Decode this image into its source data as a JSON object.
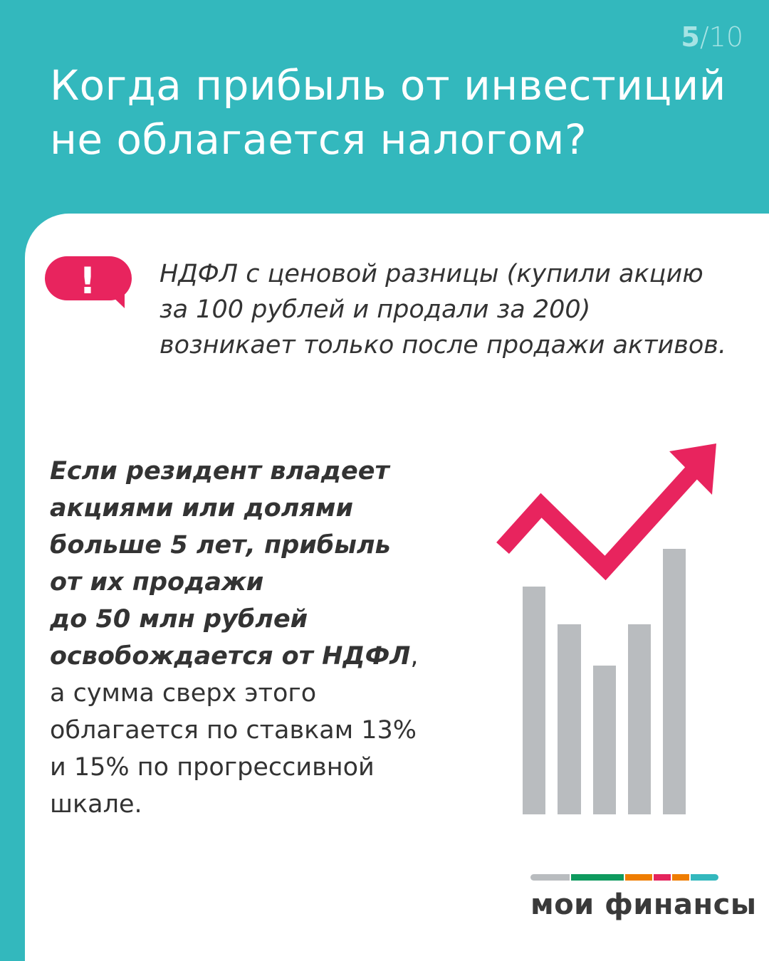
{
  "page_indicator": {
    "current": "5",
    "separator_total": "/10"
  },
  "title_lines": [
    "Когда прибыль от инвестиций",
    "не облагается налогом?"
  ],
  "alert": {
    "icon": "exclamation-speech-bubble-icon",
    "symbol": "!"
  },
  "note_text": "НДФЛ с ценовой разницы (купили акцию за 100 рублей и продали за 200) возникает только после продажи активов.",
  "main_text": {
    "emphasis_lines": [
      "Если резидент владеет",
      "акциями или долями",
      "больше 5 лет, прибыль",
      "от их продажи",
      "до 50 млн рублей",
      "освобождается от НДФЛ"
    ],
    "comma": ",",
    "regular_lines": [
      "а сумма сверх этого",
      "облагается по ставкам 13%",
      "и 15% по прогрессивной",
      "шкале."
    ]
  },
  "illustration": {
    "icon": "rising-chart-arrow-icon"
  },
  "logo": {
    "text": "мои финансы",
    "bar_colors": [
      "#b9bcbf",
      "#0e9a5e",
      "#ef7d00",
      "#e5245c",
      "#ef7d00",
      "#33b8bd"
    ]
  },
  "colors": {
    "teal": "#33b8bd",
    "pink": "#e8245e",
    "bar_gray": "#b9bcbf",
    "text": "#333333"
  }
}
